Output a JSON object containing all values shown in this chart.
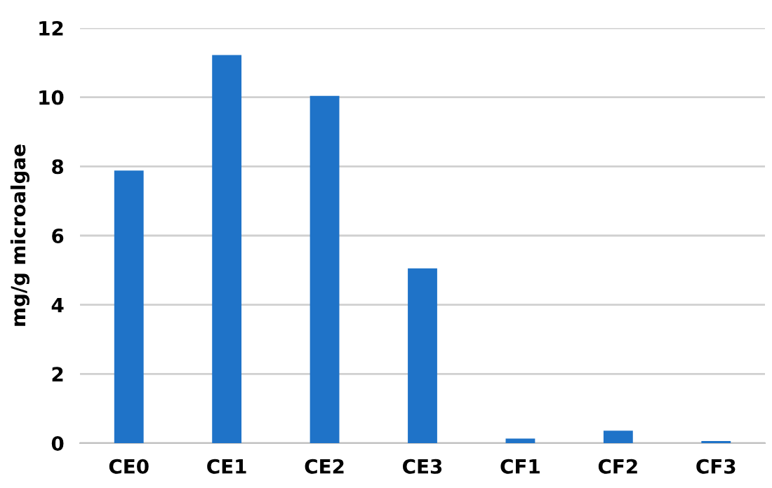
{
  "chart_data": {
    "type": "bar",
    "ylabel": "mg/g microalgae",
    "categories": [
      "CE0",
      "CE1",
      "CE2",
      "CE3",
      "CF1",
      "CF2",
      "CF3"
    ],
    "values": [
      7.88,
      11.22,
      10.04,
      5.05,
      0.13,
      0.36,
      0.06
    ],
    "color": "#1f73c8",
    "ylim": [
      0,
      12
    ],
    "yticks": [
      0,
      2,
      4,
      6,
      8,
      10,
      12
    ],
    "grid": "y"
  }
}
